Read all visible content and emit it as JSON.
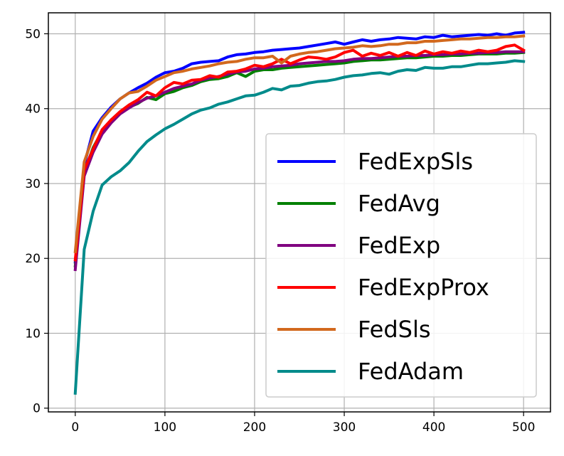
{
  "chart_data": {
    "type": "line",
    "title": "",
    "xlabel": "",
    "ylabel": "",
    "xlim": [
      -30,
      530
    ],
    "ylim": [
      -0.5,
      52.8
    ],
    "grid": true,
    "legend_position": "lower-right",
    "x_ticks": [
      0,
      100,
      200,
      300,
      400,
      500
    ],
    "y_ticks": [
      0,
      10,
      20,
      30,
      40,
      50
    ],
    "x_tick_labels": [
      "0",
      "100",
      "200",
      "300",
      "400",
      "500"
    ],
    "y_tick_labels": [
      "0",
      "10",
      "20",
      "30",
      "40",
      "50"
    ],
    "series": [
      {
        "name": "FedExpSls",
        "color": "#0000ff",
        "points": [
          [
            0,
            19.5
          ],
          [
            10,
            32.5
          ],
          [
            20,
            37.0
          ],
          [
            30,
            38.8
          ],
          [
            40,
            40.2
          ],
          [
            50,
            41.3
          ],
          [
            60,
            42.1
          ],
          [
            70,
            42.8
          ],
          [
            80,
            43.4
          ],
          [
            90,
            44.2
          ],
          [
            100,
            44.8
          ],
          [
            110,
            45.0
          ],
          [
            120,
            45.4
          ],
          [
            130,
            46.0
          ],
          [
            140,
            46.2
          ],
          [
            150,
            46.3
          ],
          [
            160,
            46.4
          ],
          [
            170,
            46.9
          ],
          [
            180,
            47.2
          ],
          [
            190,
            47.3
          ],
          [
            200,
            47.5
          ],
          [
            210,
            47.6
          ],
          [
            220,
            47.8
          ],
          [
            230,
            47.9
          ],
          [
            240,
            48.0
          ],
          [
            250,
            48.1
          ],
          [
            260,
            48.3
          ],
          [
            270,
            48.5
          ],
          [
            280,
            48.7
          ],
          [
            290,
            48.9
          ],
          [
            300,
            48.6
          ],
          [
            310,
            48.9
          ],
          [
            320,
            49.2
          ],
          [
            330,
            49.0
          ],
          [
            340,
            49.2
          ],
          [
            350,
            49.3
          ],
          [
            360,
            49.5
          ],
          [
            370,
            49.4
          ],
          [
            380,
            49.3
          ],
          [
            390,
            49.6
          ],
          [
            400,
            49.5
          ],
          [
            410,
            49.8
          ],
          [
            420,
            49.6
          ],
          [
            430,
            49.7
          ],
          [
            440,
            49.8
          ],
          [
            450,
            49.9
          ],
          [
            460,
            49.8
          ],
          [
            470,
            50.0
          ],
          [
            480,
            49.8
          ],
          [
            490,
            50.1
          ],
          [
            500,
            50.2
          ]
        ]
      },
      {
        "name": "FedAvg",
        "color": "#008000",
        "points": [
          [
            0,
            19.0
          ],
          [
            10,
            31.5
          ],
          [
            20,
            34.8
          ],
          [
            30,
            37.0
          ],
          [
            40,
            38.5
          ],
          [
            50,
            39.5
          ],
          [
            60,
            40.2
          ],
          [
            70,
            40.7
          ],
          [
            80,
            41.5
          ],
          [
            90,
            41.2
          ],
          [
            100,
            42.0
          ],
          [
            110,
            42.3
          ],
          [
            120,
            42.8
          ],
          [
            130,
            43.1
          ],
          [
            140,
            43.6
          ],
          [
            150,
            43.9
          ],
          [
            160,
            44.0
          ],
          [
            170,
            44.3
          ],
          [
            180,
            44.8
          ],
          [
            190,
            44.3
          ],
          [
            200,
            45.0
          ],
          [
            210,
            45.2
          ],
          [
            220,
            45.2
          ],
          [
            230,
            45.4
          ],
          [
            240,
            45.5
          ],
          [
            250,
            45.6
          ],
          [
            260,
            45.7
          ],
          [
            270,
            45.8
          ],
          [
            280,
            45.9
          ],
          [
            290,
            46.0
          ],
          [
            300,
            46.1
          ],
          [
            310,
            46.3
          ],
          [
            320,
            46.4
          ],
          [
            330,
            46.5
          ],
          [
            340,
            46.5
          ],
          [
            350,
            46.6
          ],
          [
            360,
            46.7
          ],
          [
            370,
            46.8
          ],
          [
            380,
            46.8
          ],
          [
            390,
            46.9
          ],
          [
            400,
            47.0
          ],
          [
            410,
            47.0
          ],
          [
            420,
            47.1
          ],
          [
            430,
            47.1
          ],
          [
            440,
            47.2
          ],
          [
            450,
            47.3
          ],
          [
            460,
            47.3
          ],
          [
            470,
            47.3
          ],
          [
            480,
            47.4
          ],
          [
            490,
            47.4
          ],
          [
            500,
            47.5
          ]
        ]
      },
      {
        "name": "FedExp",
        "color": "#800080",
        "points": [
          [
            0,
            18.5
          ],
          [
            10,
            31.0
          ],
          [
            20,
            34.2
          ],
          [
            30,
            36.6
          ],
          [
            40,
            38.1
          ],
          [
            50,
            39.3
          ],
          [
            60,
            40.1
          ],
          [
            70,
            40.8
          ],
          [
            80,
            41.4
          ],
          [
            90,
            41.7
          ],
          [
            100,
            42.2
          ],
          [
            110,
            42.7
          ],
          [
            120,
            43.0
          ],
          [
            130,
            43.3
          ],
          [
            140,
            43.8
          ],
          [
            150,
            44.1
          ],
          [
            160,
            44.3
          ],
          [
            170,
            44.6
          ],
          [
            180,
            44.9
          ],
          [
            190,
            45.0
          ],
          [
            200,
            45.3
          ],
          [
            210,
            45.4
          ],
          [
            220,
            45.6
          ],
          [
            230,
            45.7
          ],
          [
            240,
            45.8
          ],
          [
            250,
            46.0
          ],
          [
            260,
            46.1
          ],
          [
            270,
            46.2
          ],
          [
            280,
            46.3
          ],
          [
            290,
            46.3
          ],
          [
            300,
            46.4
          ],
          [
            310,
            46.6
          ],
          [
            320,
            46.7
          ],
          [
            330,
            46.7
          ],
          [
            340,
            46.8
          ],
          [
            350,
            46.9
          ],
          [
            360,
            47.0
          ],
          [
            370,
            47.0
          ],
          [
            380,
            47.1
          ],
          [
            390,
            47.1
          ],
          [
            400,
            47.2
          ],
          [
            410,
            47.2
          ],
          [
            420,
            47.3
          ],
          [
            430,
            47.3
          ],
          [
            440,
            47.4
          ],
          [
            450,
            47.4
          ],
          [
            460,
            47.5
          ],
          [
            470,
            47.5
          ],
          [
            480,
            47.6
          ],
          [
            490,
            47.6
          ],
          [
            500,
            47.6
          ]
        ]
      },
      {
        "name": "FedExpProx",
        "color": "#ff0000",
        "points": [
          [
            0,
            19.8
          ],
          [
            10,
            31.8
          ],
          [
            20,
            34.6
          ],
          [
            30,
            37.2
          ],
          [
            40,
            38.5
          ],
          [
            50,
            39.6
          ],
          [
            60,
            40.5
          ],
          [
            70,
            41.2
          ],
          [
            80,
            42.2
          ],
          [
            90,
            41.7
          ],
          [
            100,
            42.8
          ],
          [
            110,
            43.5
          ],
          [
            120,
            43.3
          ],
          [
            130,
            43.8
          ],
          [
            140,
            43.9
          ],
          [
            150,
            44.4
          ],
          [
            160,
            44.2
          ],
          [
            170,
            44.9
          ],
          [
            180,
            45.0
          ],
          [
            190,
            45.3
          ],
          [
            200,
            45.8
          ],
          [
            210,
            45.6
          ],
          [
            220,
            46.0
          ],
          [
            230,
            46.6
          ],
          [
            240,
            46.0
          ],
          [
            250,
            46.5
          ],
          [
            260,
            46.9
          ],
          [
            270,
            46.8
          ],
          [
            280,
            46.6
          ],
          [
            290,
            46.9
          ],
          [
            300,
            47.5
          ],
          [
            310,
            47.8
          ],
          [
            320,
            47.0
          ],
          [
            330,
            47.4
          ],
          [
            340,
            47.1
          ],
          [
            350,
            47.5
          ],
          [
            360,
            47.0
          ],
          [
            370,
            47.5
          ],
          [
            380,
            47.1
          ],
          [
            390,
            47.7
          ],
          [
            400,
            47.3
          ],
          [
            410,
            47.6
          ],
          [
            420,
            47.4
          ],
          [
            430,
            47.7
          ],
          [
            440,
            47.5
          ],
          [
            450,
            47.8
          ],
          [
            460,
            47.6
          ],
          [
            470,
            47.8
          ],
          [
            480,
            48.3
          ],
          [
            490,
            48.5
          ],
          [
            500,
            47.8
          ]
        ]
      },
      {
        "name": "FedSls",
        "color": "#d2691e",
        "points": [
          [
            0,
            20.9
          ],
          [
            10,
            32.9
          ],
          [
            20,
            36.3
          ],
          [
            30,
            38.6
          ],
          [
            40,
            40.0
          ],
          [
            50,
            41.3
          ],
          [
            60,
            42.1
          ],
          [
            70,
            42.3
          ],
          [
            80,
            43.0
          ],
          [
            90,
            43.8
          ],
          [
            100,
            44.3
          ],
          [
            110,
            44.8
          ],
          [
            120,
            45.0
          ],
          [
            130,
            45.3
          ],
          [
            140,
            45.5
          ],
          [
            150,
            45.7
          ],
          [
            160,
            46.0
          ],
          [
            170,
            46.2
          ],
          [
            180,
            46.3
          ],
          [
            190,
            46.6
          ],
          [
            200,
            46.8
          ],
          [
            210,
            46.8
          ],
          [
            220,
            47.0
          ],
          [
            230,
            46.1
          ],
          [
            240,
            47.0
          ],
          [
            250,
            47.3
          ],
          [
            260,
            47.5
          ],
          [
            270,
            47.6
          ],
          [
            280,
            47.8
          ],
          [
            290,
            48.0
          ],
          [
            300,
            48.1
          ],
          [
            310,
            48.2
          ],
          [
            320,
            48.4
          ],
          [
            330,
            48.3
          ],
          [
            340,
            48.4
          ],
          [
            350,
            48.6
          ],
          [
            360,
            48.6
          ],
          [
            370,
            48.8
          ],
          [
            380,
            48.8
          ],
          [
            390,
            49.0
          ],
          [
            400,
            49.0
          ],
          [
            410,
            49.1
          ],
          [
            420,
            49.2
          ],
          [
            430,
            49.3
          ],
          [
            440,
            49.3
          ],
          [
            450,
            49.4
          ],
          [
            460,
            49.5
          ],
          [
            470,
            49.5
          ],
          [
            480,
            49.6
          ],
          [
            490,
            49.6
          ],
          [
            500,
            49.7
          ]
        ]
      },
      {
        "name": "FedAdam",
        "color": "#008b8b",
        "points": [
          [
            0,
            2.0
          ],
          [
            10,
            21.2
          ],
          [
            20,
            26.3
          ],
          [
            30,
            29.8
          ],
          [
            40,
            30.9
          ],
          [
            50,
            31.7
          ],
          [
            60,
            32.8
          ],
          [
            70,
            34.3
          ],
          [
            80,
            35.6
          ],
          [
            90,
            36.5
          ],
          [
            100,
            37.3
          ],
          [
            110,
            37.9
          ],
          [
            120,
            38.6
          ],
          [
            130,
            39.3
          ],
          [
            140,
            39.8
          ],
          [
            150,
            40.1
          ],
          [
            160,
            40.6
          ],
          [
            170,
            40.9
          ],
          [
            180,
            41.3
          ],
          [
            190,
            41.7
          ],
          [
            200,
            41.8
          ],
          [
            210,
            42.2
          ],
          [
            220,
            42.7
          ],
          [
            230,
            42.5
          ],
          [
            240,
            43.0
          ],
          [
            250,
            43.1
          ],
          [
            260,
            43.4
          ],
          [
            270,
            43.6
          ],
          [
            280,
            43.7
          ],
          [
            290,
            43.9
          ],
          [
            300,
            44.2
          ],
          [
            310,
            44.4
          ],
          [
            320,
            44.5
          ],
          [
            330,
            44.7
          ],
          [
            340,
            44.8
          ],
          [
            350,
            44.6
          ],
          [
            360,
            45.0
          ],
          [
            370,
            45.2
          ],
          [
            380,
            45.1
          ],
          [
            390,
            45.5
          ],
          [
            400,
            45.4
          ],
          [
            410,
            45.4
          ],
          [
            420,
            45.6
          ],
          [
            430,
            45.6
          ],
          [
            440,
            45.8
          ],
          [
            450,
            46.0
          ],
          [
            460,
            46.0
          ],
          [
            470,
            46.1
          ],
          [
            480,
            46.2
          ],
          [
            490,
            46.4
          ],
          [
            500,
            46.3
          ]
        ]
      }
    ]
  }
}
